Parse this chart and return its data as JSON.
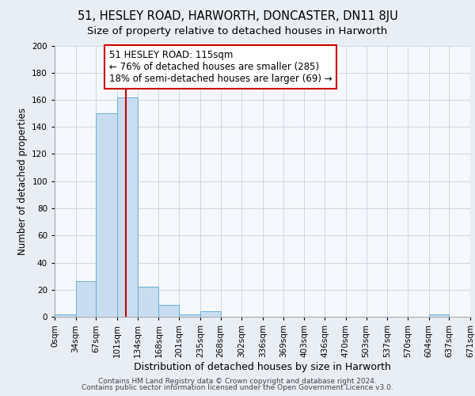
{
  "title1": "51, HESLEY ROAD, HARWORTH, DONCASTER, DN11 8JU",
  "title2": "Size of property relative to detached houses in Harworth",
  "xlabel": "Distribution of detached houses by size in Harworth",
  "ylabel": "Number of detached properties",
  "bin_edges": [
    0,
    34,
    67,
    101,
    134,
    168,
    201,
    235,
    268,
    302,
    336,
    369,
    403,
    436,
    470,
    503,
    537,
    570,
    604,
    637,
    671
  ],
  "bar_heights": [
    2,
    26,
    150,
    162,
    22,
    9,
    2,
    4,
    0,
    0,
    0,
    0,
    0,
    0,
    0,
    0,
    0,
    0,
    2,
    0
  ],
  "bar_color": "#c8ddf0",
  "bar_edgecolor": "#6aaed6",
  "property_size": 115,
  "vline_color": "#cc0000",
  "annotation_line1": "51 HESLEY ROAD: 115sqm",
  "annotation_line2": "← 76% of detached houses are smaller (285)",
  "annotation_line3": "18% of semi-detached houses are larger (69) →",
  "annotation_box_edgecolor": "#cc0000",
  "annotation_box_facecolor": "#ffffff",
  "ylim": [
    0,
    200
  ],
  "yticks": [
    0,
    20,
    40,
    60,
    80,
    100,
    120,
    140,
    160,
    180,
    200
  ],
  "footer1": "Contains HM Land Registry data © Crown copyright and database right 2024.",
  "footer2": "Contains public sector information licensed under the Open Government Licence v3.0.",
  "bg_color": "#e8eef4",
  "plot_bg_color": "#f5f8fc",
  "grid_color": "#c8d4e0",
  "title1_fontsize": 10.5,
  "title2_fontsize": 9.5,
  "xlabel_fontsize": 9,
  "ylabel_fontsize": 8.5,
  "tick_fontsize": 7.5,
  "annotation_fontsize": 8.5,
  "footer_fontsize": 6.5
}
